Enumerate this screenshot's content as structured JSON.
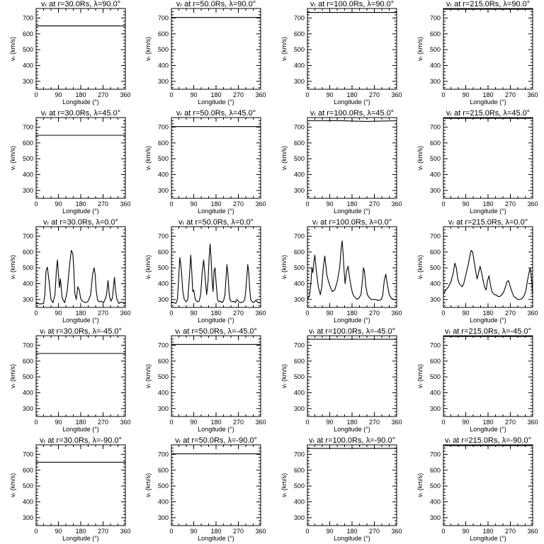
{
  "figure": {
    "grid": false,
    "legend": "none",
    "line_color": "#000000",
    "background": "#ffffff"
  },
  "chart_data": [
    {
      "type": "line",
      "title": "vᵣ at r=30.0Rs, λ=90.0°",
      "xlabel": "Longitude (°)",
      "ylabel": "vᵣ (km/s)",
      "xlim": [
        0,
        360
      ],
      "ylim": [
        250,
        760
      ],
      "xticks": [
        0,
        90,
        180,
        270,
        360
      ],
      "yticks": [
        300,
        400,
        500,
        600,
        700
      ],
      "x": [
        0,
        360
      ],
      "y": [
        650,
        650
      ]
    },
    {
      "type": "line",
      "title": "vᵣ at r=50.0Rs, λ=90.0°",
      "xlabel": "Longitude (°)",
      "ylabel": "vᵣ (km/s)",
      "xlim": [
        0,
        360
      ],
      "ylim": [
        250,
        760
      ],
      "xticks": [
        0,
        90,
        180,
        270,
        360
      ],
      "yticks": [
        300,
        400,
        500,
        600,
        700
      ],
      "x": [
        0,
        360
      ],
      "y": [
        703,
        703
      ]
    },
    {
      "type": "line",
      "title": "vᵣ at r=100.0Rs, λ=90.0°",
      "xlabel": "Longitude (°)",
      "ylabel": "vᵣ (km/s)",
      "xlim": [
        0,
        360
      ],
      "ylim": [
        250,
        760
      ],
      "xticks": [
        0,
        90,
        180,
        270,
        360
      ],
      "yticks": [
        300,
        400,
        500,
        600,
        700
      ],
      "x": [
        0,
        360
      ],
      "y": [
        735,
        735
      ]
    },
    {
      "type": "line",
      "title": "vᵣ at r=215.0Rs, λ=90.0°",
      "xlabel": "Longitude (°)",
      "ylabel": "vᵣ (km/s)",
      "xlim": [
        0,
        360
      ],
      "ylim": [
        250,
        760
      ],
      "xticks": [
        0,
        90,
        180,
        270,
        360
      ],
      "yticks": [
        300,
        400,
        500,
        600,
        700
      ],
      "x": [
        0,
        360
      ],
      "y": [
        755,
        755
      ]
    },
    {
      "type": "line",
      "title": "vᵣ at r=30.0Rs, λ=45.0°",
      "xlabel": "Longitude (°)",
      "ylabel": "vᵣ (km/s)",
      "xlim": [
        0,
        360
      ],
      "ylim": [
        250,
        760
      ],
      "xticks": [
        0,
        90,
        180,
        270,
        360
      ],
      "yticks": [
        300,
        400,
        500,
        600,
        700
      ],
      "x": [
        0,
        360
      ],
      "y": [
        648,
        648
      ]
    },
    {
      "type": "line",
      "title": "vᵣ at r=50.0Rs, λ=45.0°",
      "xlabel": "Longitude (°)",
      "ylabel": "vᵣ (km/s)",
      "xlim": [
        0,
        360
      ],
      "ylim": [
        250,
        760
      ],
      "xticks": [
        0,
        90,
        180,
        270,
        360
      ],
      "yticks": [
        300,
        400,
        500,
        600,
        700
      ],
      "x": [
        0,
        360
      ],
      "y": [
        703,
        703
      ]
    },
    {
      "type": "line",
      "title": "vᵣ at r=100.0Rs, λ=45.0°",
      "xlabel": "Longitude (°)",
      "ylabel": "vᵣ (km/s)",
      "xlim": [
        0,
        360
      ],
      "ylim": [
        250,
        760
      ],
      "xticks": [
        0,
        90,
        180,
        270,
        360
      ],
      "yticks": [
        300,
        400,
        500,
        600,
        700
      ],
      "x": [
        0,
        120,
        180,
        240,
        280,
        360
      ],
      "y": [
        740,
        741,
        738,
        736,
        737,
        740
      ]
    },
    {
      "type": "line",
      "title": "vᵣ at r=215.0Rs, λ=45.0°",
      "xlabel": "Longitude (°)",
      "ylabel": "vᵣ (km/s)",
      "xlim": [
        0,
        360
      ],
      "ylim": [
        250,
        760
      ],
      "xticks": [
        0,
        90,
        180,
        270,
        360
      ],
      "yticks": [
        300,
        400,
        500,
        600,
        700
      ],
      "x": [
        0,
        360
      ],
      "y": [
        755,
        755
      ]
    },
    {
      "type": "line",
      "title": "vᵣ at r=30.0Rs, λ=0.0°",
      "xlabel": "Longitude (°)",
      "ylabel": "vᵣ (km/s)",
      "xlim": [
        0,
        360
      ],
      "ylim": [
        250,
        760
      ],
      "xticks": [
        0,
        90,
        180,
        270,
        360
      ],
      "yticks": [
        300,
        400,
        500,
        600,
        700
      ],
      "x": [
        0,
        20,
        30,
        35,
        40,
        45,
        52,
        60,
        68,
        76,
        82,
        86,
        90,
        94,
        98,
        100,
        104,
        108,
        115,
        125,
        135,
        142,
        148,
        152,
        156,
        162,
        168,
        174,
        180,
        186,
        192,
        200,
        210,
        220,
        228,
        234,
        238,
        242,
        248,
        256,
        264,
        272,
        278,
        284,
        290,
        296,
        302,
        308,
        312,
        316,
        320,
        326,
        334,
        344,
        354,
        360
      ],
      "y": [
        275,
        272,
        275,
        330,
        480,
        505,
        420,
        300,
        280,
        330,
        490,
        550,
        460,
        375,
        430,
        400,
        320,
        300,
        280,
        350,
        520,
        610,
        590,
        490,
        340,
        300,
        380,
        360,
        305,
        290,
        285,
        280,
        290,
        330,
        460,
        500,
        460,
        360,
        295,
        285,
        290,
        280,
        300,
        330,
        420,
        320,
        290,
        310,
        380,
        440,
        360,
        300,
        275,
        285,
        275,
        280
      ]
    },
    {
      "type": "line",
      "title": "vᵣ at r=50.0Rs, λ=0.0°",
      "xlabel": "Longitude (°)",
      "ylabel": "vᵣ (km/s)",
      "xlim": [
        0,
        360
      ],
      "ylim": [
        250,
        760
      ],
      "xticks": [
        0,
        90,
        180,
        270,
        360
      ],
      "yticks": [
        300,
        400,
        500,
        600,
        700
      ],
      "x": [
        0,
        10,
        18,
        24,
        28,
        34,
        40,
        46,
        52,
        60,
        66,
        72,
        78,
        82,
        86,
        90,
        96,
        104,
        112,
        118,
        124,
        130,
        136,
        142,
        148,
        152,
        156,
        160,
        164,
        168,
        172,
        176,
        180,
        186,
        192,
        198,
        204,
        210,
        216,
        220,
        224,
        228,
        232,
        236,
        240,
        246,
        252,
        258,
        264,
        272,
        280,
        288,
        292,
        296,
        300,
        304,
        308,
        312,
        316,
        320,
        326,
        332,
        340,
        350,
        360
      ],
      "y": [
        285,
        280,
        275,
        300,
        400,
        565,
        490,
        350,
        300,
        285,
        300,
        430,
        580,
        480,
        350,
        360,
        300,
        285,
        290,
        330,
        470,
        550,
        440,
        330,
        420,
        560,
        650,
        560,
        420,
        350,
        480,
        500,
        410,
        300,
        285,
        290,
        280,
        290,
        330,
        430,
        520,
        460,
        360,
        300,
        290,
        285,
        290,
        280,
        300,
        285,
        280,
        285,
        290,
        300,
        360,
        440,
        520,
        470,
        360,
        300,
        285,
        280,
        295,
        280,
        280
      ]
    },
    {
      "type": "line",
      "title": "vᵣ at r=100.0Rs, λ=0.0°",
      "xlabel": "Longitude (°)",
      "ylabel": "vᵣ (km/s)",
      "xlim": [
        0,
        360
      ],
      "ylim": [
        250,
        760
      ],
      "xticks": [
        0,
        90,
        180,
        270,
        360
      ],
      "yticks": [
        300,
        400,
        500,
        600,
        700
      ],
      "x": [
        0,
        8,
        14,
        18,
        22,
        26,
        30,
        36,
        44,
        52,
        58,
        64,
        70,
        74,
        78,
        84,
        92,
        100,
        110,
        120,
        130,
        136,
        140,
        144,
        148,
        152,
        158,
        164,
        170,
        176,
        182,
        188,
        194,
        200,
        208,
        216,
        222,
        226,
        230,
        236,
        242,
        250,
        258,
        266,
        274,
        282,
        290,
        298,
        304,
        310,
        316,
        322,
        330,
        340,
        350,
        360
      ],
      "y": [
        300,
        320,
        400,
        500,
        470,
        540,
        580,
        480,
        380,
        330,
        380,
        500,
        575,
        520,
        460,
        420,
        380,
        350,
        360,
        410,
        500,
        620,
        670,
        590,
        480,
        400,
        480,
        510,
        440,
        380,
        340,
        320,
        310,
        300,
        310,
        330,
        420,
        500,
        480,
        380,
        330,
        310,
        300,
        300,
        300,
        295,
        295,
        300,
        330,
        420,
        460,
        400,
        330,
        305,
        300,
        300
      ]
    },
    {
      "type": "line",
      "title": "vᵣ at r=215.0Rs, λ=0.0°",
      "xlabel": "Longitude (°)",
      "ylabel": "vᵣ (km/s)",
      "xlim": [
        0,
        360
      ],
      "ylim": [
        250,
        760
      ],
      "xticks": [
        0,
        90,
        180,
        270,
        360
      ],
      "yticks": [
        300,
        400,
        500,
        600,
        700
      ],
      "x": [
        0,
        10,
        20,
        30,
        40,
        46,
        52,
        58,
        64,
        70,
        76,
        82,
        88,
        94,
        100,
        106,
        112,
        118,
        124,
        130,
        136,
        142,
        148,
        154,
        160,
        166,
        172,
        178,
        184,
        190,
        196,
        200,
        206,
        212,
        220,
        228,
        236,
        244,
        250,
        256,
        262,
        268,
        276,
        284,
        292,
        300,
        308,
        316,
        324,
        332,
        338,
        344,
        350,
        356,
        360
      ],
      "y": [
        340,
        360,
        380,
        410,
        470,
        530,
        500,
        430,
        400,
        390,
        380,
        400,
        440,
        480,
        520,
        570,
        610,
        600,
        540,
        480,
        430,
        470,
        510,
        470,
        420,
        380,
        360,
        420,
        450,
        390,
        350,
        340,
        330,
        330,
        320,
        320,
        330,
        350,
        380,
        410,
        420,
        390,
        350,
        320,
        310,
        300,
        300,
        305,
        320,
        350,
        410,
        460,
        500,
        420,
        330
      ]
    },
    {
      "type": "line",
      "title": "vᵣ at r=30.0Rs, λ=-45.0°",
      "xlabel": "Longitude (°)",
      "ylabel": "vᵣ (km/s)",
      "xlim": [
        0,
        360
      ],
      "ylim": [
        250,
        760
      ],
      "xticks": [
        0,
        90,
        180,
        270,
        360
      ],
      "yticks": [
        300,
        400,
        500,
        600,
        700
      ],
      "x": [
        0,
        360
      ],
      "y": [
        648,
        648
      ]
    },
    {
      "type": "line",
      "title": "vᵣ at r=50.0Rs, λ=-45.0°",
      "xlabel": "Longitude (°)",
      "ylabel": "vᵣ (km/s)",
      "xlim": [
        0,
        360
      ],
      "ylim": [
        250,
        760
      ],
      "xticks": [
        0,
        90,
        180,
        270,
        360
      ],
      "yticks": [
        300,
        400,
        500,
        600,
        700
      ],
      "x": [
        0,
        360
      ],
      "y": [
        705,
        705
      ]
    },
    {
      "type": "line",
      "title": "vᵣ at r=100.0Rs, λ=-45.0°",
      "xlabel": "Longitude (°)",
      "ylabel": "vᵣ (km/s)",
      "xlim": [
        0,
        360
      ],
      "ylim": [
        250,
        760
      ],
      "xticks": [
        0,
        90,
        180,
        270,
        360
      ],
      "yticks": [
        300,
        400,
        500,
        600,
        700
      ],
      "x": [
        0,
        360
      ],
      "y": [
        738,
        738
      ]
    },
    {
      "type": "line",
      "title": "vᵣ at r=215.0Rs, λ=-45.0°",
      "xlabel": "Longitude (°)",
      "ylabel": "vᵣ (km/s)",
      "xlim": [
        0,
        360
      ],
      "ylim": [
        250,
        760
      ],
      "xticks": [
        0,
        90,
        180,
        270,
        360
      ],
      "yticks": [
        300,
        400,
        500,
        600,
        700
      ],
      "x": [
        0,
        360
      ],
      "y": [
        755,
        755
      ]
    },
    {
      "type": "line",
      "title": "vᵣ at r=30.0Rs, λ=-90.0°",
      "xlabel": "Longitude (°)",
      "ylabel": "vᵣ (km/s)",
      "xlim": [
        0,
        360
      ],
      "ylim": [
        250,
        760
      ],
      "xticks": [
        0,
        90,
        180,
        270,
        360
      ],
      "yticks": [
        300,
        400,
        500,
        600,
        700
      ],
      "x": [
        0,
        360
      ],
      "y": [
        650,
        650
      ]
    },
    {
      "type": "line",
      "title": "vᵣ at r=50.0Rs, λ=-90.0°",
      "xlabel": "Longitude (°)",
      "ylabel": "vᵣ (km/s)",
      "xlim": [
        0,
        360
      ],
      "ylim": [
        250,
        760
      ],
      "xticks": [
        0,
        90,
        180,
        270,
        360
      ],
      "yticks": [
        300,
        400,
        500,
        600,
        700
      ],
      "x": [
        0,
        360
      ],
      "y": [
        703,
        703
      ]
    },
    {
      "type": "line",
      "title": "vᵣ at r=100.0Rs, λ=-90.0°",
      "xlabel": "Longitude (°)",
      "ylabel": "vᵣ (km/s)",
      "xlim": [
        0,
        360
      ],
      "ylim": [
        250,
        760
      ],
      "xticks": [
        0,
        90,
        180,
        270,
        360
      ],
      "yticks": [
        300,
        400,
        500,
        600,
        700
      ],
      "x": [
        0,
        360
      ],
      "y": [
        737,
        737
      ]
    },
    {
      "type": "line",
      "title": "vᵣ at r=215.0Rs, λ=-90.0°",
      "xlabel": "Longitude (°)",
      "ylabel": "vᵣ (km/s)",
      "xlim": [
        0,
        360
      ],
      "ylim": [
        250,
        760
      ],
      "xticks": [
        0,
        90,
        180,
        270,
        360
      ],
      "yticks": [
        300,
        400,
        500,
        600,
        700
      ],
      "x": [
        0,
        360
      ],
      "y": [
        755,
        755
      ]
    }
  ]
}
